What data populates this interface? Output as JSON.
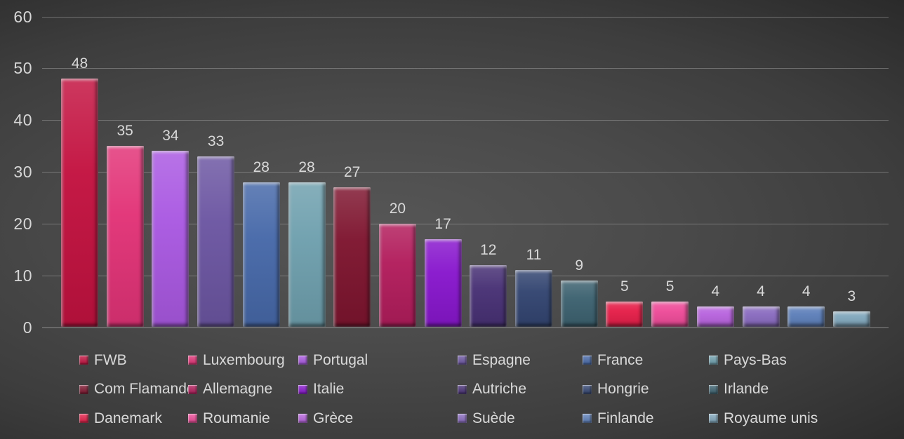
{
  "chart_data": {
    "type": "bar",
    "title": "",
    "xlabel": "",
    "ylabel": "",
    "grid": true,
    "legend_position": "bottom",
    "y_axis": {
      "min": 0,
      "max": 60,
      "step": 10,
      "tick_labels": [
        "0",
        "10",
        "20",
        "30",
        "40",
        "50",
        "60"
      ]
    },
    "value_labels_shown": true,
    "text_color": "#d9d9d9",
    "series": [
      {
        "label": "FWB",
        "value": 48,
        "color": "#c31240"
      },
      {
        "label": "Luxembourg",
        "value": 35,
        "color": "#e23377"
      },
      {
        "label": "Portugal",
        "value": 34,
        "color": "#aa59e2"
      },
      {
        "label": "Espagne",
        "value": 33,
        "color": "#6c56a2"
      },
      {
        "label": "France",
        "value": 28,
        "color": "#4769a9"
      },
      {
        "label": "Pays-Bas",
        "value": 28,
        "color": "#6fa0ae"
      },
      {
        "label": "Com Flamande",
        "value": 27,
        "color": "#7e152f"
      },
      {
        "label": "Allemagne",
        "value": 20,
        "color": "#b21d5c"
      },
      {
        "label": "Italie",
        "value": 17,
        "color": "#8817cd"
      },
      {
        "label": "Autriche",
        "value": 12,
        "color": "#483175"
      },
      {
        "label": "Hongrie",
        "value": 11,
        "color": "#334571"
      },
      {
        "label": "Irlande",
        "value": 9,
        "color": "#3d6270"
      },
      {
        "label": "Danemark",
        "value": 5,
        "color": "#e51f49"
      },
      {
        "label": "Roumanie",
        "value": 5,
        "color": "#ee4c99"
      },
      {
        "label": "Grèce",
        "value": 4,
        "color": "#b864de"
      },
      {
        "label": "Suède",
        "value": 4,
        "color": "#8a6cc0"
      },
      {
        "label": "Finlande",
        "value": 4,
        "color": "#5e80ba"
      },
      {
        "label": "Royaume unis",
        "value": 3,
        "color": "#81a7bc"
      }
    ]
  }
}
